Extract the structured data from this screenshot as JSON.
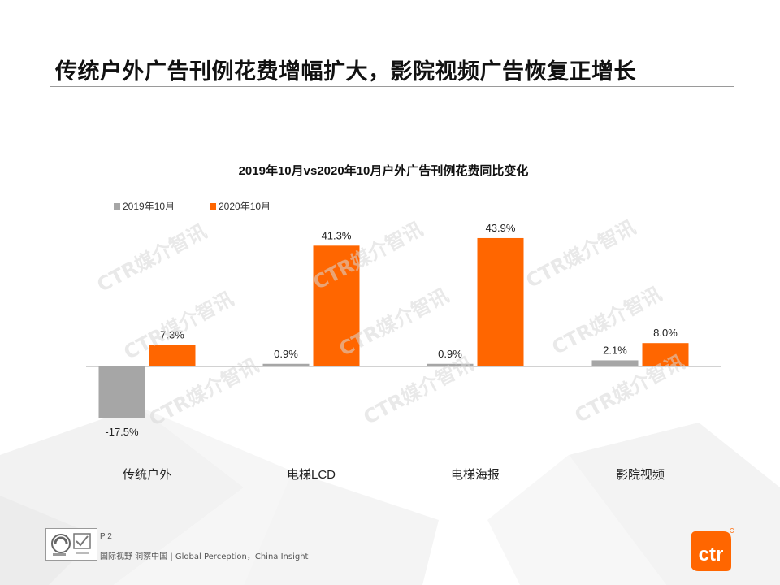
{
  "page": {
    "title": "传统户外广告刊例花费增幅扩大，影院视频广告恢复正增长",
    "page_number": "P 2",
    "slogan": "国际视野 洞察中国 | Global Perception，China Insight",
    "watermark": "CTR媒介智讯",
    "brand": "ctr"
  },
  "chart_data": {
    "type": "bar",
    "title": "2019年10月vs2020年10月户外广告刊例花费同比变化",
    "categories": [
      "传统户外",
      "电梯LCD",
      "电梯海报",
      "影院视频"
    ],
    "series": [
      {
        "name": "2019年10月",
        "values": [
          -17.5,
          0.9,
          0.9,
          2.1
        ],
        "labels": [
          "-17.5%",
          "0.9%",
          "0.9%",
          "2.1%"
        ],
        "color": "#a6a6a6"
      },
      {
        "name": "2020年10月",
        "values": [
          7.3,
          41.3,
          43.9,
          8.0
        ],
        "labels": [
          "7.3%",
          "41.3%",
          "43.9%",
          "8.0%"
        ],
        "color": "#ff6600"
      }
    ],
    "unit": "%",
    "legend_position": "top-left",
    "grid": false
  },
  "colors": {
    "accent": "#ff6600",
    "neutral_bar": "#a6a6a6",
    "axis": "#a6a6a6"
  },
  "icons": {
    "certification": "certification-logos-icon",
    "brand": "ctr-logo-icon"
  }
}
